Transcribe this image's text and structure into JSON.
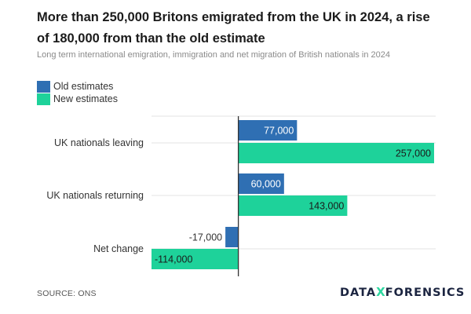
{
  "title": "More than 250,000 Britons emigrated from the UK in 2024, a rise of 180,000 from than the old estimate",
  "subtitle": "Long term international emigration, immigration and net migration of British nationals in 2024",
  "source": "SOURCE: ONS",
  "logo": {
    "part1": "DATA",
    "x": "X",
    "part2": "FORENSICS"
  },
  "colors": {
    "old": "#2f6fb3",
    "new": "#1ed29a",
    "grid": "#e3e3e3",
    "axis": "#333333"
  },
  "chart_data": {
    "type": "bar",
    "orientation": "horizontal",
    "categories": [
      "UK nationals leaving",
      "UK nationals returning",
      "Net change"
    ],
    "series": [
      {
        "name": "Old estimates",
        "values": [
          77000,
          60000,
          -17000
        ],
        "labels": [
          "77,000",
          "60,000",
          "-17,000"
        ]
      },
      {
        "name": "New estimates",
        "values": [
          257000,
          143000,
          -114000
        ],
        "labels": [
          "257,000",
          "143,000",
          "-114,000"
        ]
      }
    ],
    "xlim": [
      -114000,
      257000
    ],
    "grid": true,
    "legend_position": "top-left"
  }
}
